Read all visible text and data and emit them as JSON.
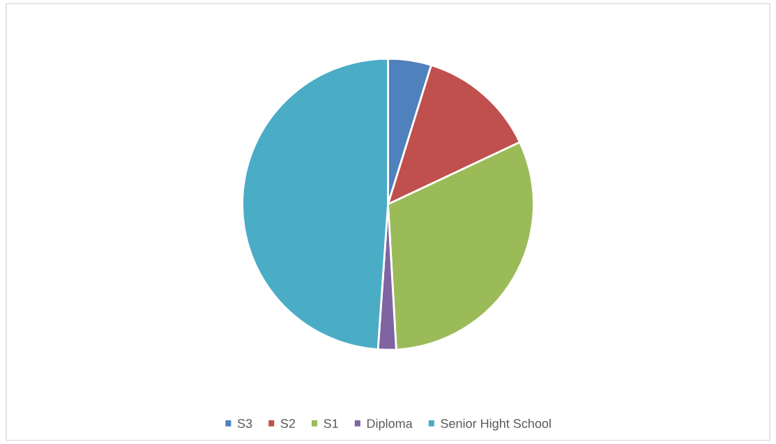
{
  "chart_data": {
    "type": "pie",
    "categories": [
      "S3",
      "S2",
      "S1",
      "Diploma",
      "Senior Hight School"
    ],
    "values": [
      4.8,
      13.2,
      31.1,
      2.0,
      48.9
    ],
    "colors": [
      "#4f81bd",
      "#c0504d",
      "#9bbb59",
      "#8064a2",
      "#4bacc6"
    ],
    "legend": "bottom"
  }
}
